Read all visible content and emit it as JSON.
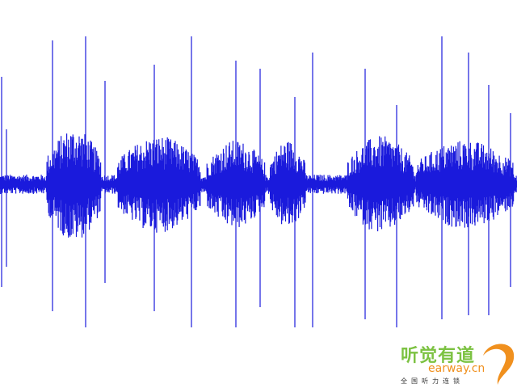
{
  "waveform": {
    "color": "#1a1adc"
  },
  "logo": {
    "name_cn": "听觉有道",
    "domain": "earway.cn",
    "tagline": "全国听力连锁",
    "green": "#7cc242",
    "orange": "#f0901e"
  }
}
